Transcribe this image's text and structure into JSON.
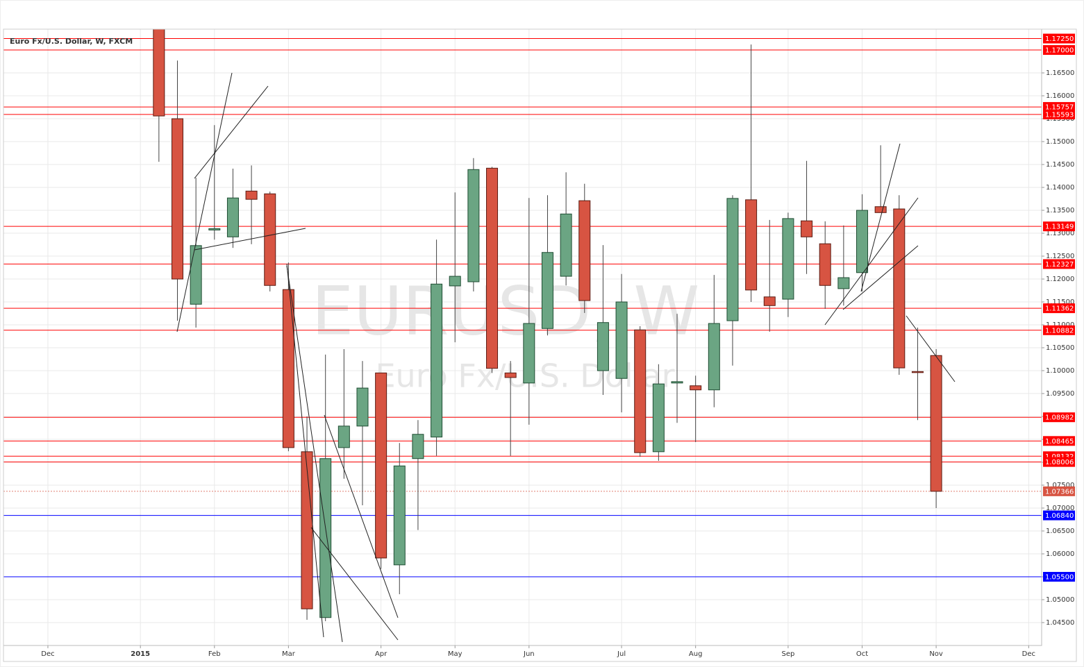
{
  "chart_data": {
    "type": "candlestick",
    "title": "Euro Fx/U.S. Dollar, W, FXCM",
    "watermark": "EURUSD, W",
    "watermark_subtitle": "Euro Fx/U.S. Dollar",
    "up_color": "#6ba583",
    "down_color": "#d75442",
    "x": [
      0,
      1,
      2,
      3,
      4,
      5,
      6,
      7,
      8,
      9,
      10,
      11,
      12,
      13,
      14,
      15,
      16,
      17,
      18,
      19,
      20,
      21,
      22,
      23,
      24,
      25,
      26,
      27,
      28,
      29,
      30,
      31,
      32,
      33,
      34,
      35,
      36,
      37,
      38,
      39,
      40,
      41,
      42
    ],
    "open": [
      1.18,
      1.155,
      1.1145,
      1.1307,
      1.1292,
      1.1392,
      1.1386,
      1.1177,
      1.0823,
      1.0461,
      1.0832,
      1.0879,
      1.0995,
      1.0576,
      1.0808,
      1.0855,
      1.1185,
      1.1194,
      1.1442,
      1.0995,
      1.0973,
      1.1092,
      1.1206,
      1.1371,
      1.1,
      1.0983,
      1.1089,
      1.0823,
      1.0973,
      1.0967,
      1.0958,
      1.1109,
      1.1373,
      1.1161,
      1.1156,
      1.1327,
      1.1277,
      1.1179,
      1.1214,
      1.1358,
      1.1353,
      1.0998,
      1.1033
    ],
    "high": [
      1.187,
      1.1677,
      1.1421,
      1.1536,
      1.1441,
      1.1448,
      1.1391,
      1.1236,
      1.09,
      1.1035,
      1.1047,
      1.1021,
      1.0995,
      1.0842,
      1.0892,
      1.1286,
      1.1389,
      1.1464,
      1.1445,
      1.1021,
      1.1377,
      1.1383,
      1.1433,
      1.1408,
      1.1274,
      1.1211,
      1.1097,
      1.1014,
      1.1124,
      1.0989,
      1.1209,
      1.1383,
      1.1712,
      1.1329,
      1.1345,
      1.1458,
      1.1326,
      1.1317,
      1.1385,
      1.1492,
      1.1383,
      1.1094,
      1.1047
    ],
    "low": [
      1.1456,
      1.1109,
      1.1094,
      1.1286,
      1.1268,
      1.1276,
      1.1173,
      1.0824,
      1.0456,
      1.0453,
      1.0764,
      1.0706,
      1.0567,
      1.0512,
      1.0652,
      1.0814,
      1.1062,
      1.1173,
      1.0995,
      1.0814,
      1.0882,
      1.1077,
      1.1186,
      1.1126,
      1.0947,
      1.0909,
      1.0812,
      1.0803,
      1.0886,
      1.0844,
      1.092,
      1.1011,
      1.115,
      1.1085,
      1.1117,
      1.1211,
      1.1135,
      1.1142,
      1.1173,
      1.1345,
      1.0991,
      1.0892,
      1.07
    ],
    "close": [
      1.1556,
      1.12,
      1.1273,
      1.131,
      1.1377,
      1.1374,
      1.1186,
      1.0832,
      1.048,
      1.0808,
      1.0879,
      1.0962,
      1.0591,
      1.0792,
      1.0861,
      1.1189,
      1.1206,
      1.1439,
      1.1005,
      1.0985,
      1.1103,
      1.1258,
      1.1342,
      1.1153,
      1.1105,
      1.115,
      1.0821,
      1.0971,
      1.0976,
      1.0958,
      1.1103,
      1.1376,
      1.1176,
      1.1142,
      1.1332,
      1.1292,
      1.1186,
      1.1203,
      1.135,
      1.1345,
      1.1006,
      1.0996,
      1.07366
    ],
    "xlim": [
      -8.4,
      47.7
    ],
    "xticks": [
      {
        "value": -6,
        "label": "Dec"
      },
      {
        "value": -1,
        "label": "2015"
      },
      {
        "value": 3,
        "label": "Feb"
      },
      {
        "value": 7,
        "label": "Mar"
      },
      {
        "value": 12,
        "label": "Apr"
      },
      {
        "value": 16,
        "label": "May"
      },
      {
        "value": 20,
        "label": "Jun"
      },
      {
        "value": 25,
        "label": "Jul"
      },
      {
        "value": 29,
        "label": "Aug"
      },
      {
        "value": 34,
        "label": "Sep"
      },
      {
        "value": 38,
        "label": "Oct"
      },
      {
        "value": 42,
        "label": "Nov"
      },
      {
        "value": 47,
        "label": "Dec"
      }
    ],
    "ylim": [
      1.04,
      1.17455
    ],
    "yticks": [
      {
        "value": 1.045,
        "label": "1.04500"
      },
      {
        "value": 1.05,
        "label": "1.05000"
      },
      {
        "value": 1.055,
        "label": "1.05500"
      },
      {
        "value": 1.06,
        "label": "1.06000"
      },
      {
        "value": 1.065,
        "label": "1.06500"
      },
      {
        "value": 1.07,
        "label": "1.07000"
      },
      {
        "value": 1.075,
        "label": "1.07500"
      },
      {
        "value": 1.08,
        "label": "1.08000"
      },
      {
        "value": 1.085,
        "label": "1.08500"
      },
      {
        "value": 1.09,
        "label": "1.09000"
      },
      {
        "value": 1.095,
        "label": "1.09500"
      },
      {
        "value": 1.1,
        "label": "1.10000"
      },
      {
        "value": 1.105,
        "label": "1.10500"
      },
      {
        "value": 1.11,
        "label": "1.11000"
      },
      {
        "value": 1.115,
        "label": "1.11500"
      },
      {
        "value": 1.12,
        "label": "1.12000"
      },
      {
        "value": 1.125,
        "label": "1.12500"
      },
      {
        "value": 1.13,
        "label": "1.13000"
      },
      {
        "value": 1.135,
        "label": "1.13500"
      },
      {
        "value": 1.14,
        "label": "1.14000"
      },
      {
        "value": 1.145,
        "label": "1.14500"
      },
      {
        "value": 1.15,
        "label": "1.15000"
      },
      {
        "value": 1.155,
        "label": "1.15500"
      },
      {
        "value": 1.16,
        "label": "1.16000"
      },
      {
        "value": 1.165,
        "label": "1.16500"
      }
    ],
    "grid": true,
    "levels": [
      {
        "value": 1.1725,
        "label": "1.17250",
        "color": "#ff0000"
      },
      {
        "value": 1.17,
        "label": "1.17000",
        "color": "#ff0000"
      },
      {
        "value": 1.15757,
        "label": "1.15757",
        "color": "#ff0000"
      },
      {
        "value": 1.15593,
        "label": "1.15593",
        "color": "#ff0000"
      },
      {
        "value": 1.13149,
        "label": "1.13149",
        "color": "#ff0000"
      },
      {
        "value": 1.12327,
        "label": "1.12327",
        "color": "#ff0000"
      },
      {
        "value": 1.11362,
        "label": "1.11362",
        "color": "#ff0000"
      },
      {
        "value": 1.10882,
        "label": "1.10882",
        "color": "#ff0000"
      },
      {
        "value": 1.08982,
        "label": "1.08982",
        "color": "#ff0000"
      },
      {
        "value": 1.08465,
        "label": "1.08465",
        "color": "#ff0000"
      },
      {
        "value": 1.08132,
        "label": "1.08132",
        "color": "#ff0000"
      },
      {
        "value": 1.08006,
        "label": "1.08006",
        "color": "#ff0000"
      },
      {
        "value": 1.07366,
        "label": "1.07366",
        "color": "#d75442",
        "line_style": "dotted"
      },
      {
        "value": 1.0684,
        "label": "1.06840",
        "color": "#0000ff"
      },
      {
        "value": 1.055,
        "label": "1.05500",
        "color": "#0000ff"
      }
    ]
  }
}
